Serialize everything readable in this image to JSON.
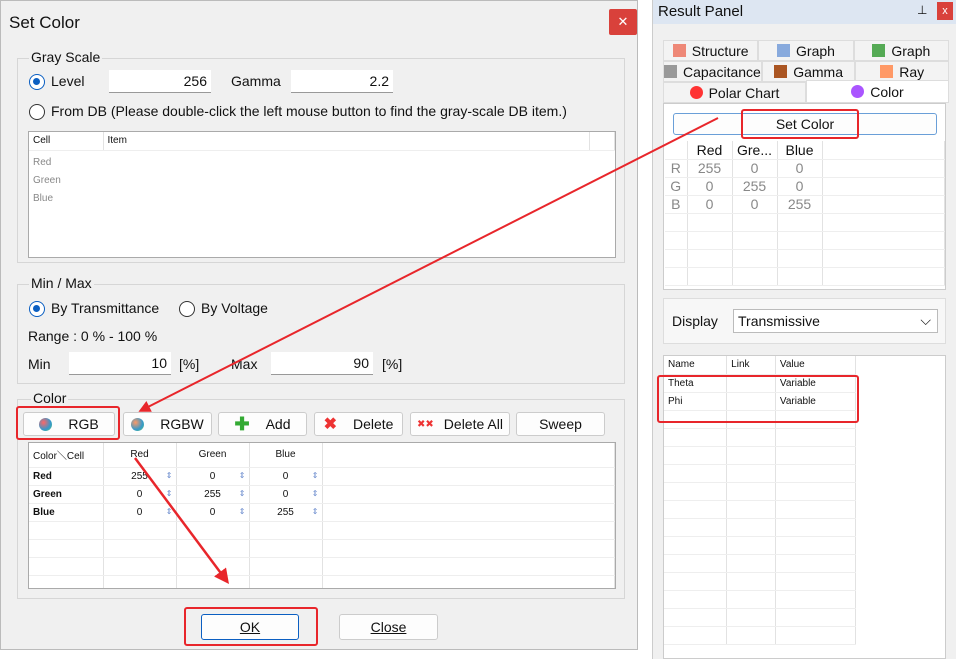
{
  "dialog": {
    "title": "Set Color",
    "close": "✕",
    "gray_scale": {
      "label": "Gray Scale",
      "level_label": "Level",
      "level_value": "256",
      "gamma_label": "Gamma",
      "gamma_value": "2.2",
      "from_db_label": "From DB (Please double-click the left mouse button to find the gray-scale DB item.)",
      "grid": {
        "headers": [
          "Cell",
          "Item"
        ],
        "rows": [
          "Red",
          "Green",
          "Blue"
        ]
      }
    },
    "min_max": {
      "label": "Min / Max",
      "by_transmittance": "By Transmittance",
      "by_voltage": "By Voltage",
      "range": "Range : 0 % - 100 %",
      "min_label": "Min",
      "min_value": "10",
      "min_unit": "[%]",
      "max_label": "Max",
      "max_value": "90",
      "max_unit": "[%]"
    },
    "color": {
      "label": "Color",
      "buttons": [
        "RGB",
        "RGBW",
        "Add",
        "Delete",
        "Delete All",
        "Sweep"
      ],
      "grid": {
        "headers": [
          "Color＼Cell",
          "Red",
          "Green",
          "Blue"
        ],
        "rows": [
          [
            "Red",
            "255",
            "0",
            "0"
          ],
          [
            "Green",
            "0",
            "255",
            "0"
          ],
          [
            "Blue",
            "0",
            "0",
            "255"
          ]
        ]
      }
    },
    "ok": "OK",
    "close_button": "Close"
  },
  "panel": {
    "title": "Result Panel",
    "pin": "📌",
    "close": "x",
    "tabs": [
      [
        "Structure",
        "Graph",
        "Graph"
      ],
      [
        "Capacitance",
        "Gamma",
        "Ray"
      ],
      [
        "Polar Chart",
        "Color"
      ]
    ],
    "active_tab": "Color",
    "set_color": "Set Color",
    "color_table": {
      "headers": [
        "",
        "Red",
        "Gre...",
        "Blue"
      ],
      "rows": [
        [
          "R",
          "255",
          "0",
          "0"
        ],
        [
          "G",
          "0",
          "255",
          "0"
        ],
        [
          "B",
          "0",
          "0",
          "255"
        ]
      ]
    },
    "display_label": "Display",
    "display_value": "Transmissive",
    "props": {
      "headers": [
        "Name",
        "Link",
        "Value"
      ],
      "rows": [
        [
          "Theta",
          "",
          "Variable"
        ],
        [
          "Phi",
          "",
          "Variable"
        ]
      ]
    }
  },
  "annotation_color": "#e8262b"
}
